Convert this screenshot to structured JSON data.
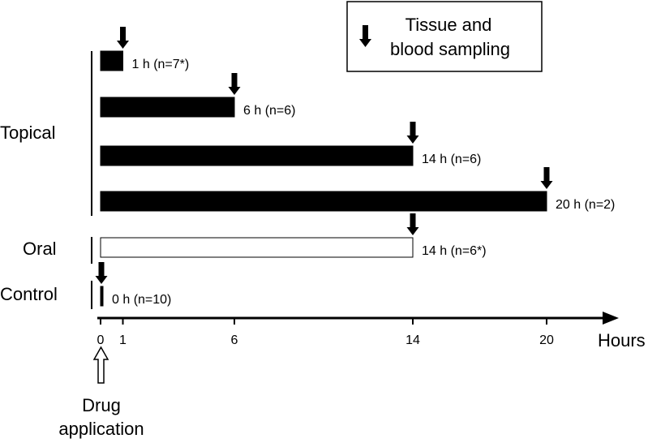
{
  "legend": {
    "line1": "Tissue and",
    "line2": "blood sampling",
    "icon": "down-arrow-icon"
  },
  "groups": {
    "topical": "Topical",
    "oral": "Oral",
    "control": "Control"
  },
  "chart_data": {
    "type": "timeline",
    "xlabel": "Hours",
    "x_ticks": [
      "0",
      "1",
      "6",
      "14",
      "20"
    ],
    "xlim": [
      0,
      21
    ],
    "bars": [
      {
        "group": "Topical",
        "hours": 1,
        "label": "1 h (n=7*)",
        "fill": "#000000"
      },
      {
        "group": "Topical",
        "hours": 6,
        "label": "6 h (n=6)",
        "fill": "#000000"
      },
      {
        "group": "Topical",
        "hours": 14,
        "label": "14 h (n=6)",
        "fill": "#000000"
      },
      {
        "group": "Topical",
        "hours": 20,
        "label": "20 h (n=2)",
        "fill": "#000000"
      },
      {
        "group": "Oral",
        "hours": 14,
        "label": "14 h (n=6*)",
        "fill": "#ffffff"
      },
      {
        "group": "Control",
        "hours": 0,
        "label": "0 h (n=10)",
        "fill": "#000000"
      }
    ]
  },
  "drug_marker": {
    "line1": "Drug",
    "line2": "application",
    "icon": "up-arrow-outline-icon"
  }
}
